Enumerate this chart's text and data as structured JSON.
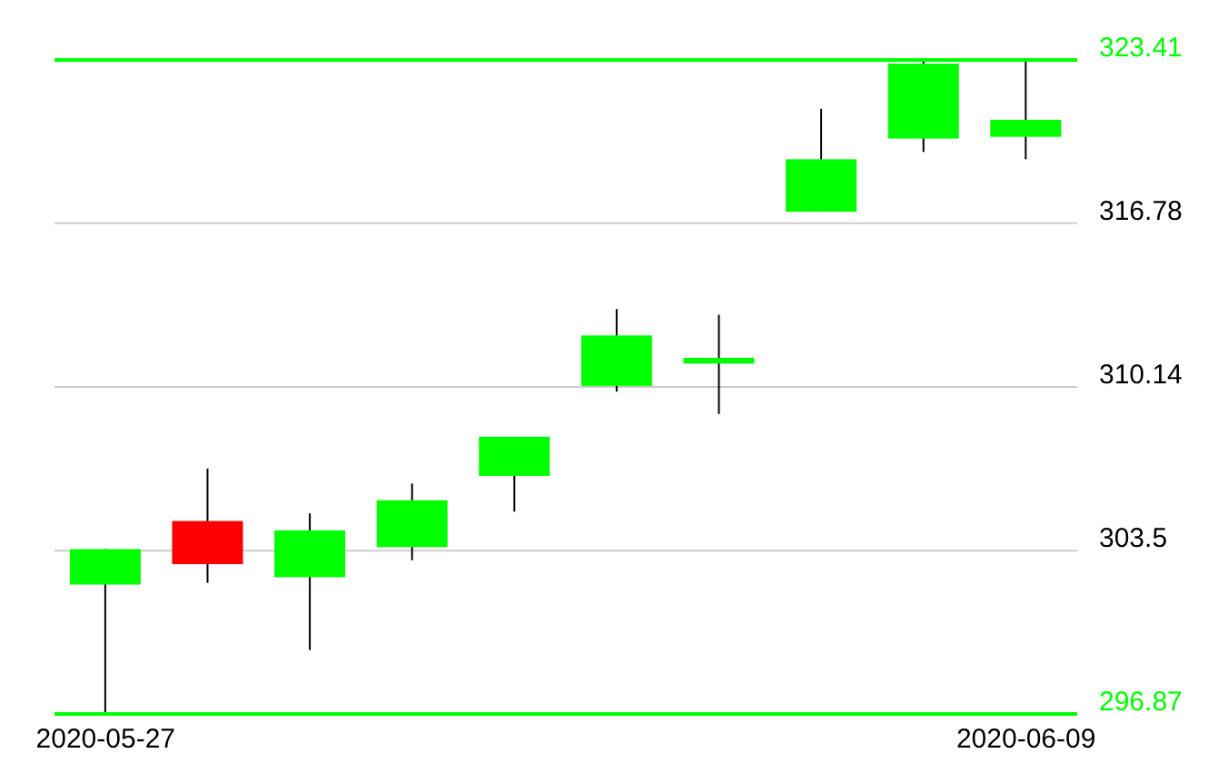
{
  "chart_data": {
    "type": "candlestick",
    "categories": [
      "2020-05-27",
      null,
      null,
      null,
      null,
      null,
      null,
      null,
      null,
      "2020-06-09"
    ],
    "ohlc": [
      [
        302.12,
        303.56,
        296.87,
        303.56
      ],
      [
        304.7,
        306.83,
        302.19,
        302.95
      ],
      [
        302.42,
        305.01,
        299.46,
        304.32
      ],
      [
        303.64,
        306.22,
        303.11,
        305.54
      ],
      [
        306.53,
        308.12,
        305.08,
        308.12
      ],
      [
        310.18,
        313.3,
        309.95,
        312.23
      ],
      [
        311.09,
        313.07,
        309.04,
        311.32
      ],
      [
        317.25,
        321.43,
        317.25,
        319.38
      ],
      [
        320.22,
        323.41,
        319.68,
        323.26
      ],
      [
        320.29,
        323.41,
        319.38,
        320.98
      ]
    ],
    "colors": [
      "#00ff00",
      "#ff0000",
      "#00ff00",
      "#00ff00",
      "#00ff00",
      "#00ff00",
      "#00ff00",
      "#00ff00",
      "#00ff00",
      "#00ff00"
    ],
    "ylim": [
      296.87,
      323.41
    ],
    "yticks": [
      296.87,
      303.5,
      310.14,
      316.78,
      323.41
    ],
    "grid": "y",
    "ref_lines": [
      {
        "axis": "y",
        "value": 323.41,
        "color": "#00ff00"
      }
    ]
  }
}
